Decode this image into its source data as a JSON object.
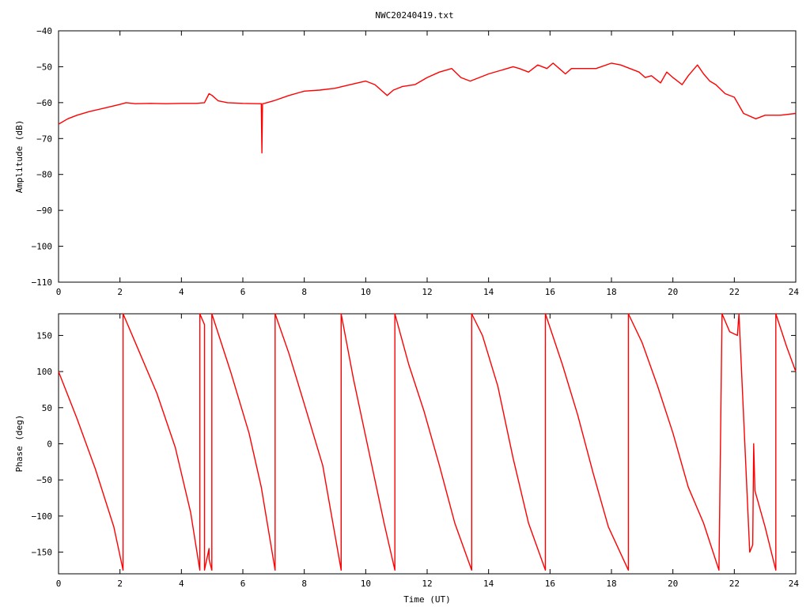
{
  "title": "NWC20240419.txt",
  "colors": {
    "trace": "#ff0000",
    "axis": "#000000",
    "background": "#ffffff"
  },
  "chart_data": [
    {
      "type": "line",
      "xlabel": "",
      "ylabel": "Amplitude (dB)",
      "xlim": [
        0,
        24
      ],
      "ylim": [
        -110,
        -40
      ],
      "xticks": [
        0,
        2,
        4,
        6,
        8,
        10,
        12,
        14,
        16,
        18,
        20,
        22,
        24
      ],
      "yticks": [
        -110,
        -100,
        -90,
        -80,
        -70,
        -60,
        -50,
        -40
      ],
      "grid": false,
      "series": [
        {
          "x": [
            0,
            0.3,
            0.6,
            1.0,
            1.5,
            2.0,
            2.2,
            2.5,
            3.0,
            3.5,
            4.0,
            4.5,
            4.75,
            4.9,
            5.0,
            5.2,
            5.5,
            6.0,
            6.5,
            6.6,
            6.62,
            6.64,
            6.7,
            7.0,
            7.5,
            8.0,
            8.5,
            9.0,
            9.5,
            10.0,
            10.3,
            10.7,
            10.9,
            11.2,
            11.6,
            12.0,
            12.4,
            12.8,
            13.1,
            13.4,
            13.7,
            14.0,
            14.4,
            14.8,
            15.0,
            15.3,
            15.6,
            15.9,
            16.1,
            16.3,
            16.5,
            16.7,
            17.0,
            17.5,
            18.0,
            18.3,
            18.6,
            18.9,
            19.1,
            19.3,
            19.6,
            19.8,
            20.0,
            20.3,
            20.5,
            20.8,
            21.0,
            21.2,
            21.4,
            21.7,
            22.0,
            22.3,
            22.7,
            23.0,
            23.5,
            24.0
          ],
          "y": [
            -66,
            -64.5,
            -63.5,
            -62.5,
            -61.5,
            -60.5,
            -60,
            -60.3,
            -60.2,
            -60.3,
            -60.2,
            -60.2,
            -60,
            -57.5,
            -58,
            -59.5,
            -60,
            -60.2,
            -60.3,
            -60.3,
            -74,
            -60.3,
            -60.2,
            -59.5,
            -58,
            -56.8,
            -56.5,
            -56,
            -55,
            -54,
            -55,
            -58,
            -56.5,
            -55.5,
            -55,
            -53,
            -51.5,
            -50.5,
            -53,
            -54,
            -53,
            -52,
            -51,
            -50,
            -50.5,
            -51.5,
            -49.5,
            -50.5,
            -49,
            -50.5,
            -52,
            -50.5,
            -50.5,
            -50.5,
            -49,
            -49.5,
            -50.5,
            -51.5,
            -53,
            -52.5,
            -54.5,
            -51.5,
            -53,
            -55,
            -52.5,
            -49.5,
            -52,
            -54,
            -55,
            -57.5,
            -58.5,
            -63,
            -64.5,
            -63.5,
            -63.5,
            -63
          ]
        }
      ]
    },
    {
      "type": "line",
      "xlabel": "Time (UT)",
      "ylabel": "Phase (deg)",
      "xlim": [
        0,
        24
      ],
      "ylim": [
        -180,
        180
      ],
      "xticks": [
        0,
        2,
        4,
        6,
        8,
        10,
        12,
        14,
        16,
        18,
        20,
        22,
        24
      ],
      "yticks": [
        -150,
        -100,
        -50,
        0,
        50,
        100,
        150
      ],
      "grid": false,
      "series": [
        {
          "x": [
            0,
            0.6,
            1.2,
            1.8,
            2.1,
            2.1,
            2.6,
            3.2,
            3.8,
            4.3,
            4.6,
            4.6,
            4.75,
            4.75,
            4.9,
            4.9,
            4.99,
            4.99,
            5.6,
            6.2,
            6.6,
            7.05,
            7.05,
            7.5,
            8.0,
            8.6,
            9.2,
            9.2,
            9.6,
            10.1,
            10.6,
            10.95,
            10.95,
            11.4,
            11.9,
            12.4,
            12.9,
            13.45,
            13.45,
            13.8,
            14.3,
            14.8,
            15.3,
            15.85,
            15.85,
            16.4,
            16.9,
            17.4,
            17.9,
            18.55,
            18.55,
            19.0,
            19.5,
            20.0,
            20.5,
            21.0,
            21.5,
            21.6,
            21.85,
            22.1,
            22.15,
            22.5,
            22.6,
            22.63,
            22.67,
            23.0,
            23.35,
            23.35,
            23.7,
            24.0
          ],
          "y": [
            100,
            35,
            -35,
            -115,
            -175,
            180,
            130,
            70,
            -5,
            -95,
            -175,
            180,
            165,
            -175,
            -145,
            -160,
            -175,
            180,
            100,
            15,
            -60,
            -175,
            180,
            125,
            55,
            -30,
            -175,
            180,
            90,
            -10,
            -110,
            -175,
            180,
            110,
            45,
            -30,
            -110,
            -175,
            180,
            150,
            80,
            -20,
            -110,
            -175,
            180,
            110,
            40,
            -40,
            -115,
            -175,
            180,
            140,
            80,
            15,
            -60,
            -110,
            -175,
            180,
            155,
            150,
            180,
            -150,
            -140,
            0,
            -65,
            -115,
            -175,
            180,
            135,
            100
          ]
        }
      ]
    }
  ]
}
